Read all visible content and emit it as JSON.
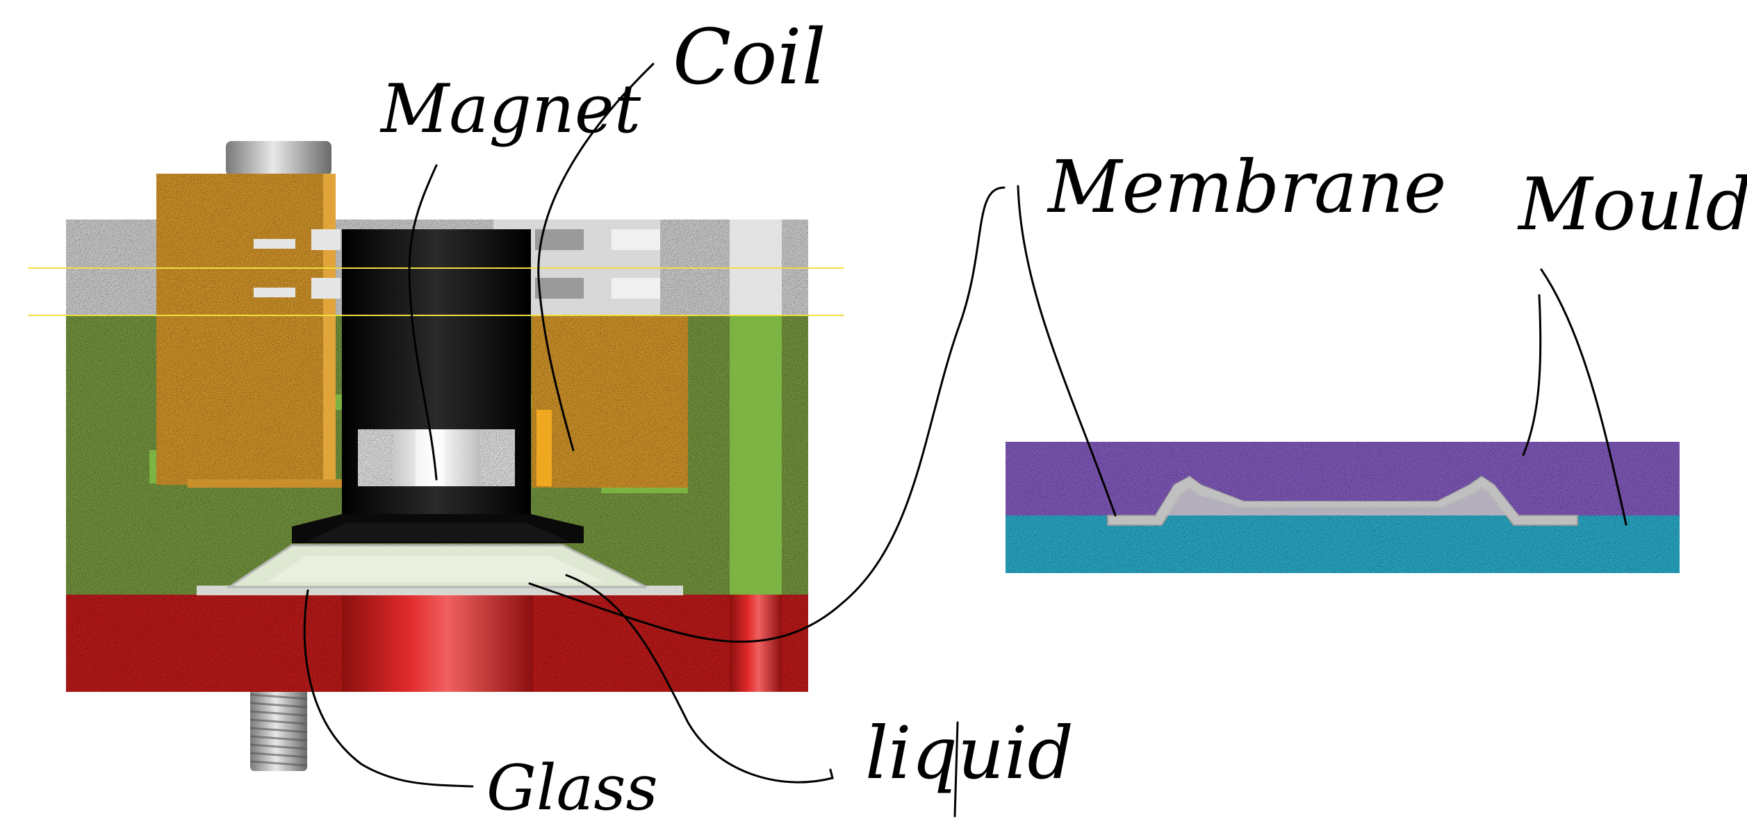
{
  "labels": {
    "magnet": "Magnet",
    "coil": "Coil",
    "membrane": "Membrane",
    "mould": "Mould",
    "glass": "Glass",
    "liquid": "liquid"
  },
  "colors": {
    "background": "#ffffff",
    "housing_green": "#6f8f3e",
    "bright_green": "#7cb342",
    "coil_orange": "#c98f2a",
    "top_plate_grey": "#c4c4c4",
    "base_red": "#b61c1c",
    "magnet_holder_black": "#0a0a0a",
    "magnet_steel": "#d9d9d9",
    "membrane_grey": "#bfbfbf",
    "liquid_lens": "#dfe8d2",
    "mould_purple": "#7d58b5",
    "mould_cyan": "#2aa4c0",
    "guide_line_yellow": "#f0e040",
    "ink": "#000000"
  }
}
